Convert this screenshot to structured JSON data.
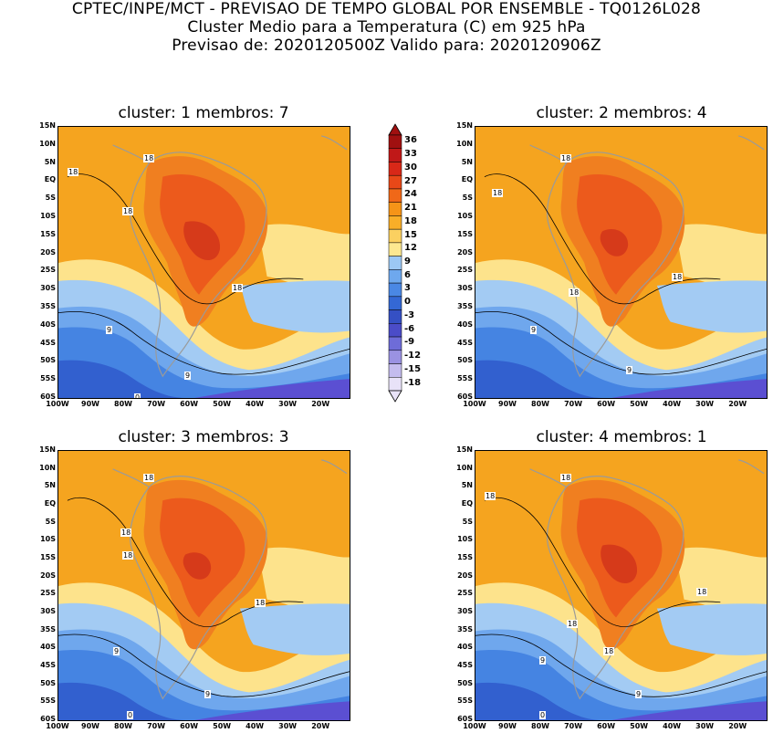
{
  "header": {
    "line1": "CPTEC/INPE/MCT - PREVISAO DE TEMPO GLOBAL POR ENSEMBLE - TQ0126L028",
    "line2": "Cluster Medio para a Temperatura (C) em 925 hPa",
    "line3": "Previsao de: 2020120500Z   Valido para: 2020120906Z"
  },
  "panels": [
    {
      "title": "cluster: 1   membros: 7",
      "labels": [
        "18",
        "18",
        "18",
        "18",
        "9",
        "9",
        "0"
      ]
    },
    {
      "title": "cluster: 2   membros: 4",
      "labels": [
        "18",
        "18",
        "18",
        "18",
        "9",
        "9"
      ]
    },
    {
      "title": "cluster: 3   membros: 3",
      "labels": [
        "18",
        "18",
        "18",
        "18",
        "9",
        "9",
        "0"
      ]
    },
    {
      "title": "cluster: 4   membros: 1",
      "labels": [
        "18",
        "18",
        "18",
        "18",
        "18",
        "9",
        "9",
        "0"
      ]
    }
  ],
  "y_ticks": [
    "15N",
    "10N",
    "5N",
    "EQ",
    "5S",
    "10S",
    "15S",
    "20S",
    "25S",
    "30S",
    "35S",
    "40S",
    "45S",
    "50S",
    "55S",
    "60S"
  ],
  "x_ticks": [
    "100W",
    "90W",
    "80W",
    "70W",
    "60W",
    "50W",
    "40W",
    "30W",
    "20W"
  ],
  "colorbar": {
    "labels": [
      "36",
      "33",
      "30",
      "27",
      "24",
      "21",
      "18",
      "15",
      "12",
      "9",
      "6",
      "3",
      "0",
      "-3",
      "-6",
      "-9",
      "-12",
      "-15",
      "-18"
    ],
    "colors": [
      "#a01010",
      "#c01818",
      "#d82818",
      "#e84818",
      "#f06818",
      "#f59418",
      "#f8ae28",
      "#fbd060",
      "#fde890",
      "#9cc8f4",
      "#6ea8ee",
      "#4a88e4",
      "#3468d4",
      "#3550c4",
      "#4b4cc8",
      "#6e6cd8",
      "#9a92e2",
      "#c4bcee",
      "#e8e2f8"
    ]
  },
  "regions": {
    "ocean_north": "#f5a41f",
    "ocean_cool": "#fde38c",
    "ocean_blue1": "#a3cbf3",
    "ocean_blue2": "#6fa7ed",
    "ocean_blue3": "#4584e2",
    "ocean_blue4": "#3260cf",
    "ocean_south": "#5b4fd2",
    "land_hot1": "#f07f20",
    "land_hot2": "#ec5a1c",
    "land_hot3": "#d63a1a",
    "coast": "#9a9a9a"
  }
}
